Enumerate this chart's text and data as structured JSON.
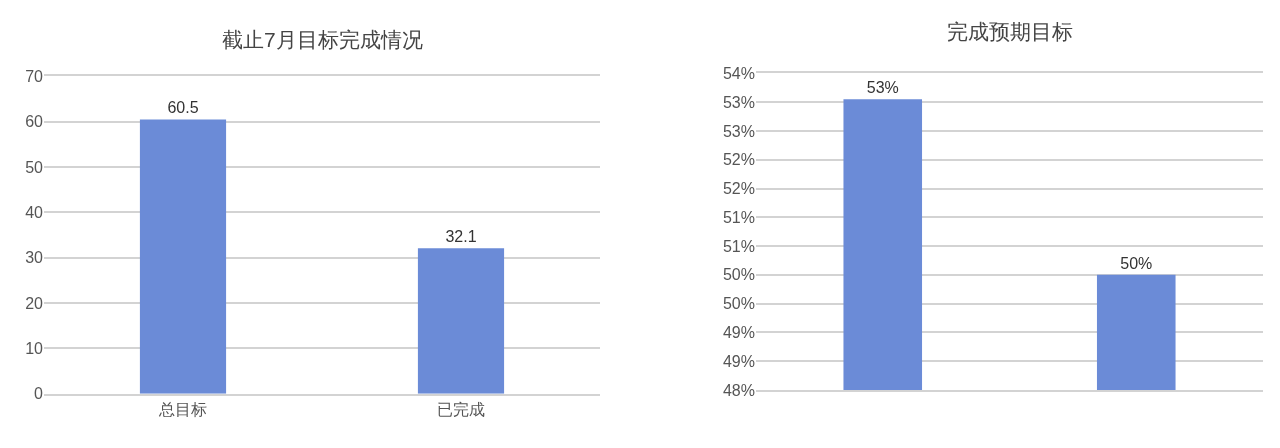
{
  "chart_data": [
    {
      "type": "bar",
      "title": "截止7月目标完成情况",
      "categories": [
        "总目标",
        "已完成"
      ],
      "values": [
        60.5,
        32.1
      ],
      "color": "#6b8bd7",
      "ylim": [
        0,
        70
      ],
      "yticks": [
        0,
        10,
        20,
        30,
        40,
        50,
        60,
        70
      ],
      "grid": "y",
      "data_labels": true
    },
    {
      "type": "bar",
      "title": "完成预期目标",
      "categories": [
        null,
        null
      ],
      "values": [
        53.05,
        50.0
      ],
      "color": "#6b8bd7",
      "ylim": [
        48,
        53.5
      ],
      "yticks": [
        {
          "value": 48,
          "label": "48%"
        },
        {
          "value": 48.5,
          "label": "49%"
        },
        {
          "value": 49,
          "label": "49%"
        },
        {
          "value": 49.5,
          "label": "50%"
        },
        {
          "value": 50,
          "label": "50%"
        },
        {
          "value": 50.5,
          "label": "51%"
        },
        {
          "value": 51,
          "label": "51%"
        },
        {
          "value": 51.5,
          "label": "52%"
        },
        {
          "value": 52,
          "label": "52%"
        },
        {
          "value": 52.5,
          "label": "53%"
        },
        {
          "value": 53,
          "label": "53%"
        },
        {
          "value": 53.5,
          "label": "54%"
        }
      ],
      "grid": "y",
      "value_labels": [
        "53%",
        "50%"
      ]
    }
  ]
}
